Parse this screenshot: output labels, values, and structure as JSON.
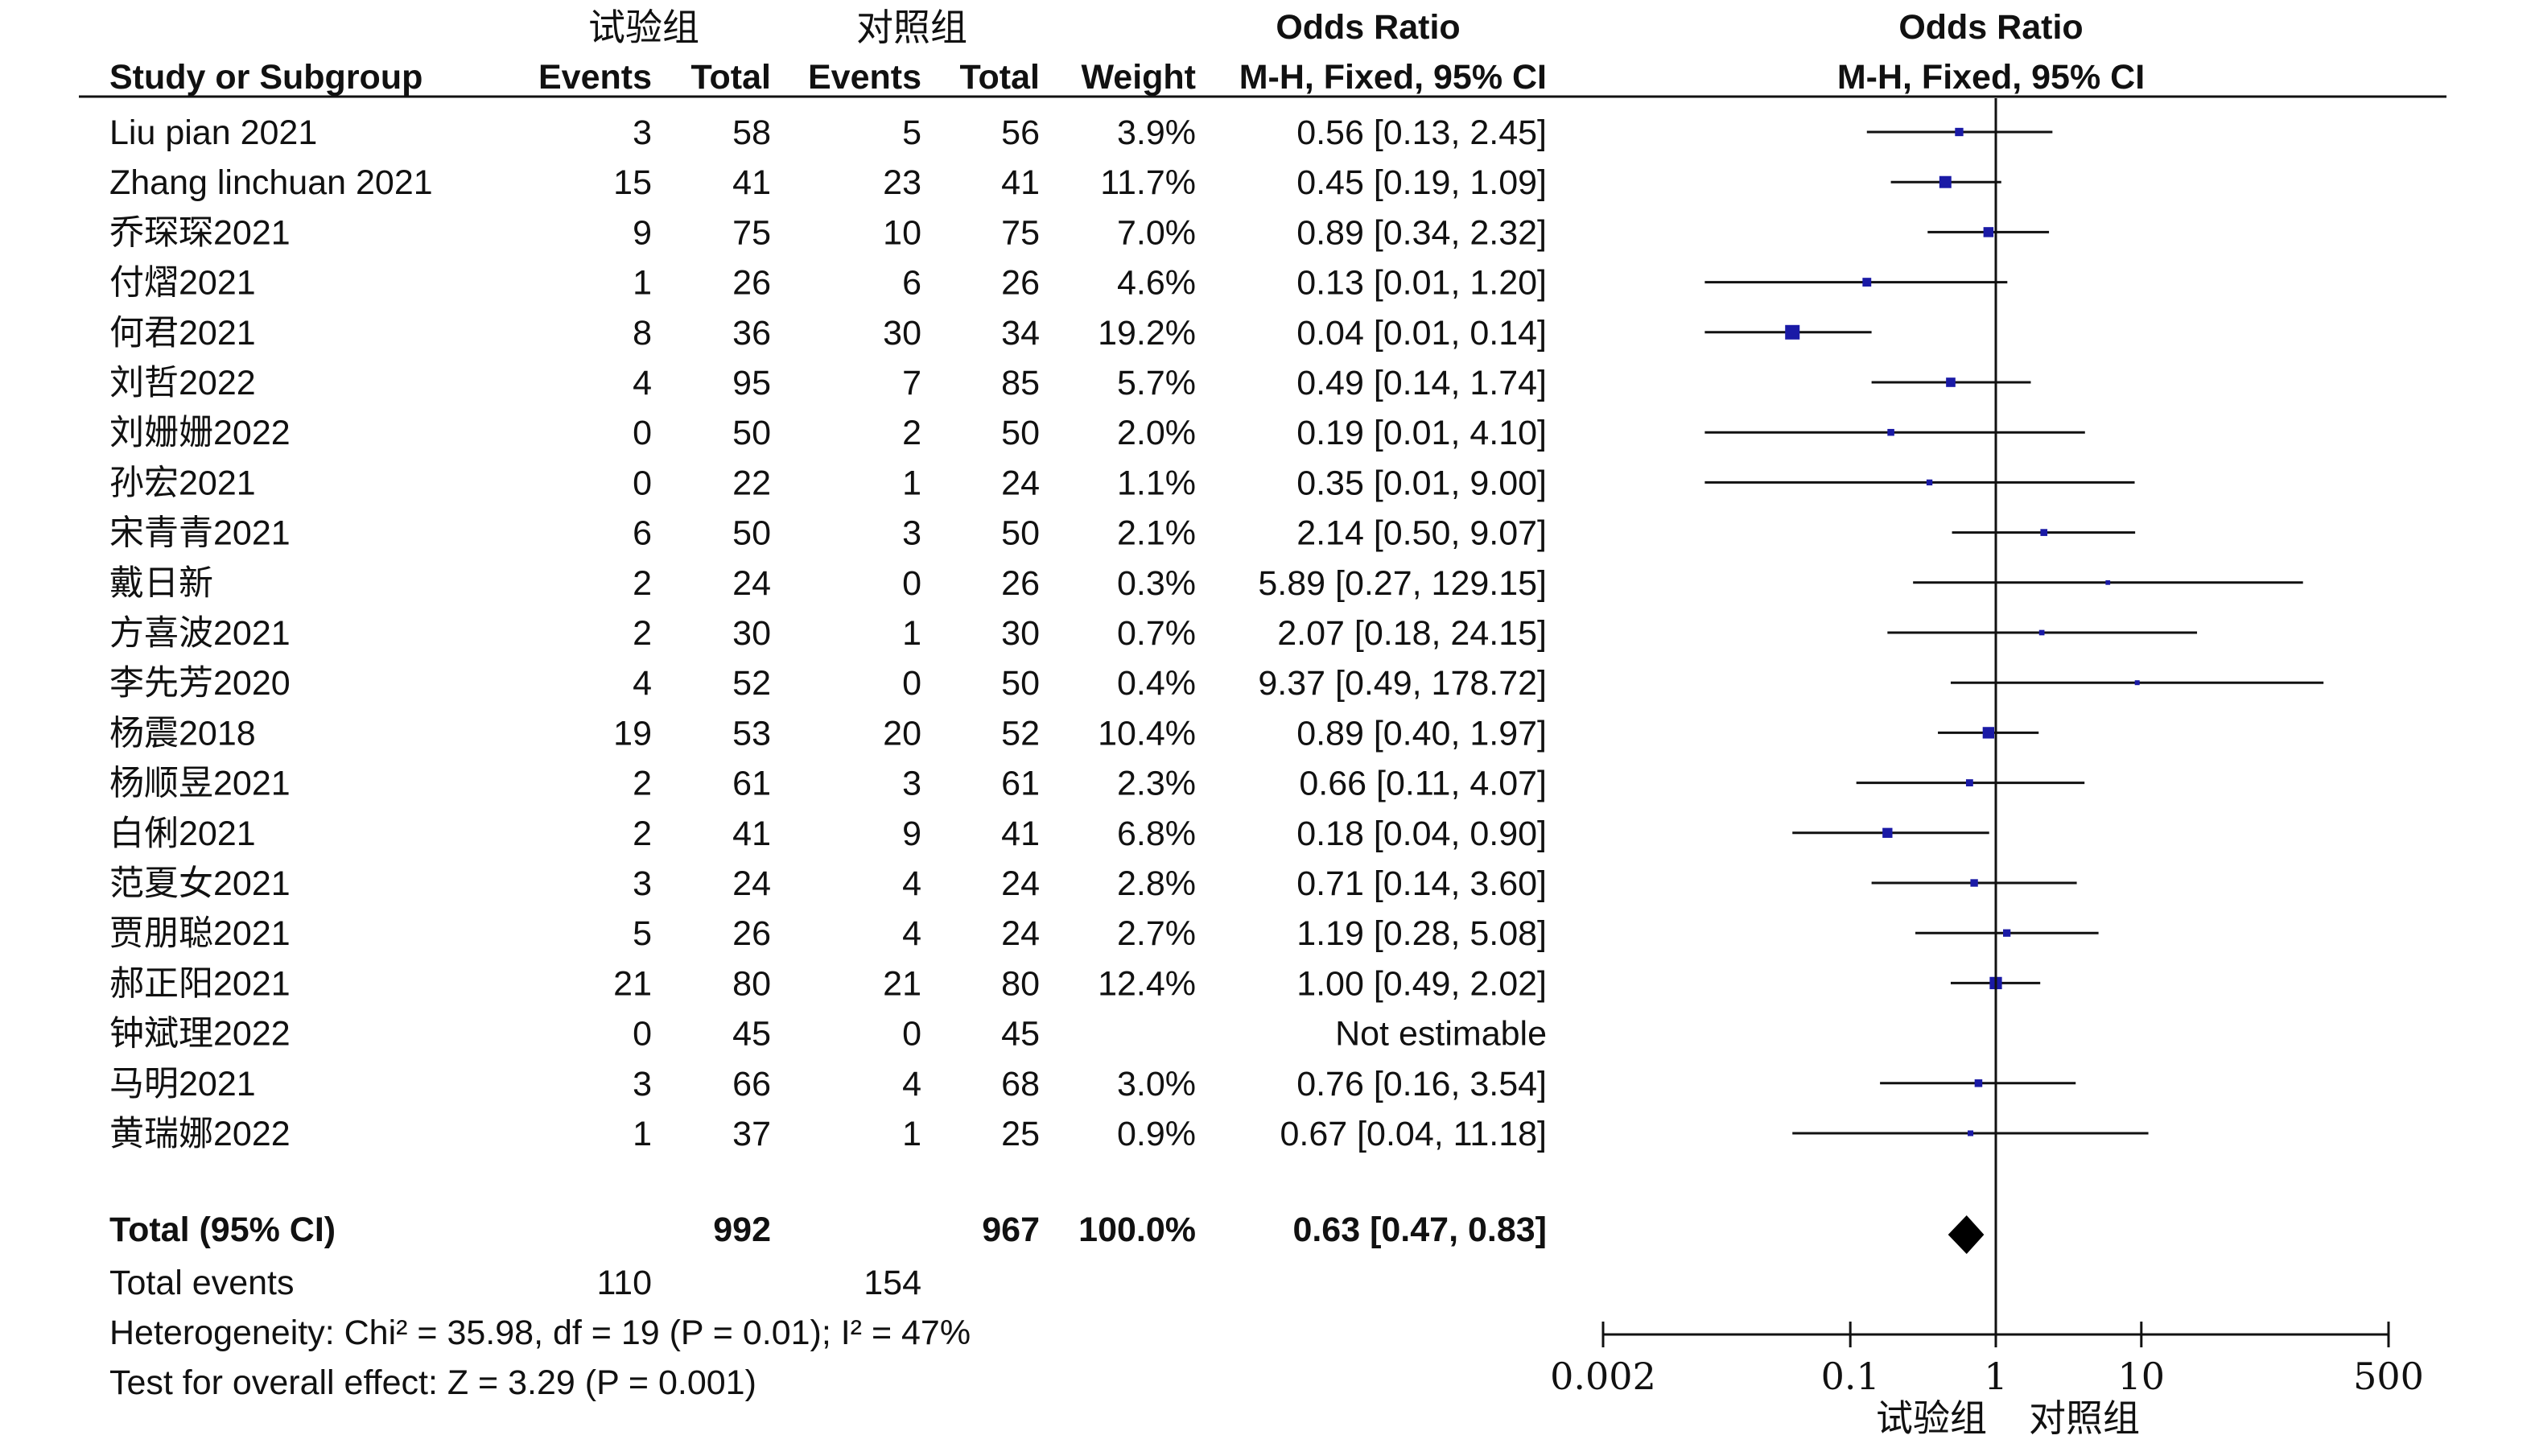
{
  "chart_data": {
    "type": "forest",
    "title": "Odds Ratio",
    "group_experimental": "试验组",
    "group_control": "对照组",
    "columns": {
      "study": "Study or Subgroup",
      "events_e": "Events",
      "total_e": "Total",
      "events_c": "Events",
      "total_c": "Total",
      "weight": "Weight",
      "or_label": "Odds Ratio",
      "or_method": "M-H, Fixed, 95% CI"
    },
    "plot_header": "Odds Ratio",
    "plot_method": "M-H, Fixed, 95% CI",
    "studies": [
      {
        "name": "Liu pian 2021",
        "ee": "3",
        "te": "58",
        "ec": "5",
        "tc": "56",
        "weight": "3.9%",
        "ci_text": "0.56 [0.13, 2.45]",
        "or": 0.56,
        "lo": 0.13,
        "hi": 2.45,
        "w": 3.9
      },
      {
        "name": "Zhang linchuan 2021",
        "ee": "15",
        "te": "41",
        "ec": "23",
        "tc": "41",
        "weight": "11.7%",
        "ci_text": "0.45 [0.19, 1.09]",
        "or": 0.45,
        "lo": 0.19,
        "hi": 1.09,
        "w": 11.7
      },
      {
        "name": "乔琛琛2021",
        "ee": "9",
        "te": "75",
        "ec": "10",
        "tc": "75",
        "weight": "7.0%",
        "ci_text": "0.89 [0.34, 2.32]",
        "or": 0.89,
        "lo": 0.34,
        "hi": 2.32,
        "w": 7.0
      },
      {
        "name": "付熠2021",
        "ee": "1",
        "te": "26",
        "ec": "6",
        "tc": "26",
        "weight": "4.6%",
        "ci_text": "0.13 [0.01, 1.20]",
        "or": 0.13,
        "lo": 0.01,
        "hi": 1.2,
        "w": 4.6
      },
      {
        "name": "何君2021",
        "ee": "8",
        "te": "36",
        "ec": "30",
        "tc": "34",
        "weight": "19.2%",
        "ci_text": "0.04 [0.01, 0.14]",
        "or": 0.04,
        "lo": 0.01,
        "hi": 0.14,
        "w": 19.2
      },
      {
        "name": "刘哲2022",
        "ee": "4",
        "te": "95",
        "ec": "7",
        "tc": "85",
        "weight": "5.7%",
        "ci_text": "0.49 [0.14, 1.74]",
        "or": 0.49,
        "lo": 0.14,
        "hi": 1.74,
        "w": 5.7
      },
      {
        "name": "刘姗姗2022",
        "ee": "0",
        "te": "50",
        "ec": "2",
        "tc": "50",
        "weight": "2.0%",
        "ci_text": "0.19 [0.01, 4.10]",
        "or": 0.19,
        "lo": 0.01,
        "hi": 4.1,
        "w": 2.0
      },
      {
        "name": "孙宏2021",
        "ee": "0",
        "te": "22",
        "ec": "1",
        "tc": "24",
        "weight": "1.1%",
        "ci_text": "0.35 [0.01, 9.00]",
        "or": 0.35,
        "lo": 0.01,
        "hi": 9.0,
        "w": 1.1
      },
      {
        "name": "宋青青2021",
        "ee": "6",
        "te": "50",
        "ec": "3",
        "tc": "50",
        "weight": "2.1%",
        "ci_text": "2.14 [0.50, 9.07]",
        "or": 2.14,
        "lo": 0.5,
        "hi": 9.07,
        "w": 2.1
      },
      {
        "name": "戴日新",
        "ee": "2",
        "te": "24",
        "ec": "0",
        "tc": "26",
        "weight": "0.3%",
        "ci_text": "5.89 [0.27, 129.15]",
        "or": 5.89,
        "lo": 0.27,
        "hi": 129.15,
        "w": 0.3
      },
      {
        "name": "方喜波2021",
        "ee": "2",
        "te": "30",
        "ec": "1",
        "tc": "30",
        "weight": "0.7%",
        "ci_text": "2.07 [0.18, 24.15]",
        "or": 2.07,
        "lo": 0.18,
        "hi": 24.15,
        "w": 0.7
      },
      {
        "name": "李先芳2020",
        "ee": "4",
        "te": "52",
        "ec": "0",
        "tc": "50",
        "weight": "0.4%",
        "ci_text": "9.37 [0.49, 178.72]",
        "or": 9.37,
        "lo": 0.49,
        "hi": 178.72,
        "w": 0.4
      },
      {
        "name": "杨震2018",
        "ee": "19",
        "te": "53",
        "ec": "20",
        "tc": "52",
        "weight": "10.4%",
        "ci_text": "0.89 [0.40, 1.97]",
        "or": 0.89,
        "lo": 0.4,
        "hi": 1.97,
        "w": 10.4
      },
      {
        "name": "杨顺昱2021",
        "ee": "2",
        "te": "61",
        "ec": "3",
        "tc": "61",
        "weight": "2.3%",
        "ci_text": "0.66 [0.11, 4.07]",
        "or": 0.66,
        "lo": 0.11,
        "hi": 4.07,
        "w": 2.3
      },
      {
        "name": "白俐2021",
        "ee": "2",
        "te": "41",
        "ec": "9",
        "tc": "41",
        "weight": "6.8%",
        "ci_text": "0.18 [0.04, 0.90]",
        "or": 0.18,
        "lo": 0.04,
        "hi": 0.9,
        "w": 6.8
      },
      {
        "name": "范夏女2021",
        "ee": "3",
        "te": "24",
        "ec": "4",
        "tc": "24",
        "weight": "2.8%",
        "ci_text": "0.71 [0.14, 3.60]",
        "or": 0.71,
        "lo": 0.14,
        "hi": 3.6,
        "w": 2.8
      },
      {
        "name": "贾朋聪2021",
        "ee": "5",
        "te": "26",
        "ec": "4",
        "tc": "24",
        "weight": "2.7%",
        "ci_text": "1.19 [0.28, 5.08]",
        "or": 1.19,
        "lo": 0.28,
        "hi": 5.08,
        "w": 2.7
      },
      {
        "name": "郝正阳2021",
        "ee": "21",
        "te": "80",
        "ec": "21",
        "tc": "80",
        "weight": "12.4%",
        "ci_text": "1.00 [0.49, 2.02]",
        "or": 1.0,
        "lo": 0.49,
        "hi": 2.02,
        "w": 12.4
      },
      {
        "name": "钟斌理2022",
        "ee": "0",
        "te": "45",
        "ec": "0",
        "tc": "45",
        "weight": "",
        "ci_text": "Not estimable",
        "or": null,
        "lo": null,
        "hi": null,
        "w": 0
      },
      {
        "name": "马明2021",
        "ee": "3",
        "te": "66",
        "ec": "4",
        "tc": "68",
        "weight": "3.0%",
        "ci_text": "0.76 [0.16, 3.54]",
        "or": 0.76,
        "lo": 0.16,
        "hi": 3.54,
        "w": 3.0
      },
      {
        "name": "黄瑞娜2022",
        "ee": "1",
        "te": "37",
        "ec": "1",
        "tc": "25",
        "weight": "0.9%",
        "ci_text": "0.67 [0.04, 11.18]",
        "or": 0.67,
        "lo": 0.04,
        "hi": 11.18,
        "w": 0.9
      }
    ],
    "total": {
      "label": "Total (95% CI)",
      "te": "992",
      "tc": "967",
      "weight": "100.0%",
      "ci_text": "0.63 [0.47, 0.83]",
      "or": 0.63,
      "lo": 0.47,
      "hi": 0.83
    },
    "total_events": {
      "label": "Total events",
      "e": "110",
      "c": "154"
    },
    "heterogeneity": "Heterogeneity: Chi² = 35.98, df = 19 (P = 0.01); I² = 47%",
    "overall_effect": "Test for overall effect: Z = 3.29 (P = 0.001)",
    "x_scale": "log",
    "xlim": [
      0.002,
      500
    ],
    "ticks": [
      {
        "value": 0.002,
        "label": "0.002"
      },
      {
        "value": 0.1,
        "label": "0.1"
      },
      {
        "value": 1,
        "label": "1"
      },
      {
        "value": 10,
        "label": "10"
      },
      {
        "value": 500,
        "label": "500"
      }
    ],
    "axis_label_left": "试验组",
    "axis_label_right": "对照组",
    "colors": {
      "marker": "#1a1aa6",
      "line": "#111111",
      "diamond": "#000000"
    }
  }
}
